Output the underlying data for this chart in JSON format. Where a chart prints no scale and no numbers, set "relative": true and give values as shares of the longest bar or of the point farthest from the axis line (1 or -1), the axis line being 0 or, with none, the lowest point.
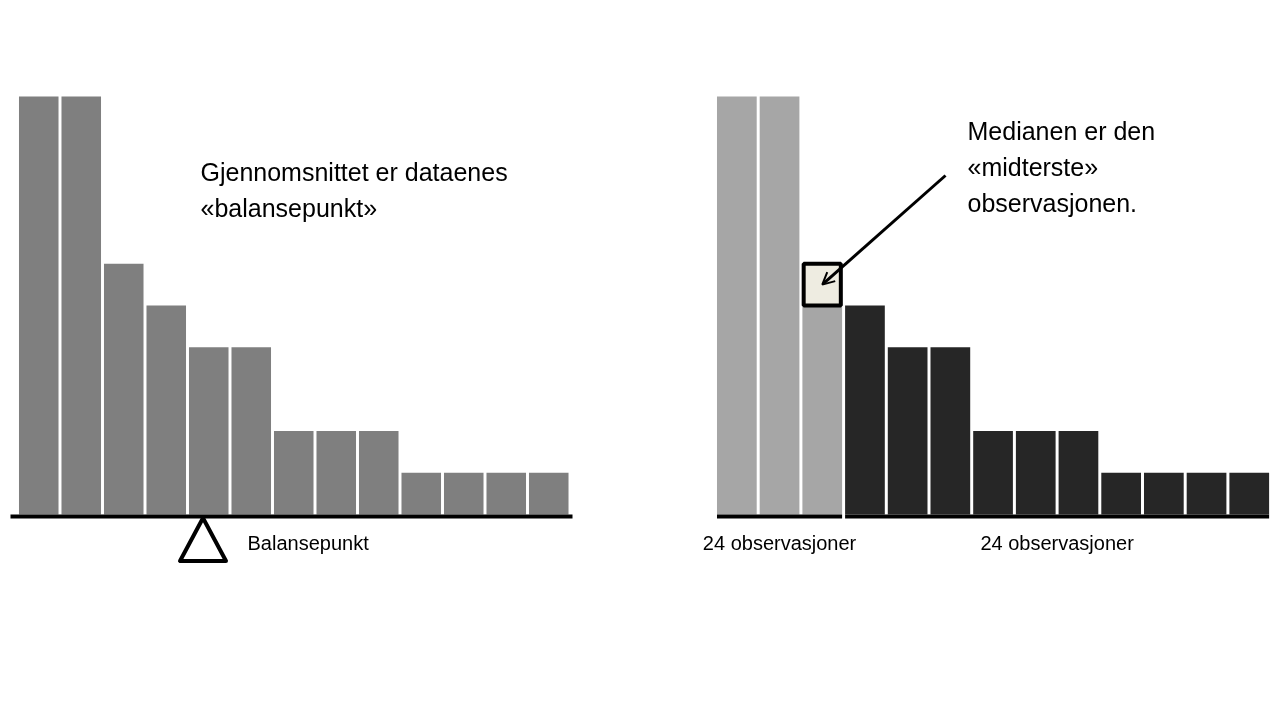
{
  "chart_data": [
    {
      "type": "bar",
      "relative": true,
      "categories": [
        null,
        null,
        null,
        null,
        null,
        null,
        null,
        null,
        null,
        null,
        null,
        null,
        null
      ],
      "values": [
        1,
        1,
        0.6,
        0.5,
        0.4,
        0.4,
        0.2,
        0.2,
        0.2,
        0.1,
        0.1,
        0.1,
        0.1
      ],
      "color": "#7f7f7f",
      "annotations": [
        "Gjennomsnittet er dataenes «balansepunkt»",
        "Balansepunkt"
      ]
    },
    {
      "type": "bar",
      "relative": true,
      "stacked": true,
      "categories": [
        null,
        null,
        null,
        null,
        null,
        null,
        null,
        null,
        null,
        null,
        null,
        null,
        null
      ],
      "series": [
        {
          "color": "#a6a6a6",
          "values": [
            1,
            1,
            0.5,
            null,
            null,
            null,
            null,
            null,
            null,
            null,
            null,
            null,
            null
          ]
        },
        {
          "color": "#eeece1",
          "values": [
            null,
            null,
            0.1,
            null,
            null,
            null,
            null,
            null,
            null,
            null,
            null,
            null,
            null
          ]
        },
        {
          "color": "#262626",
          "values": [
            null,
            null,
            null,
            0.5,
            0.4,
            0.4,
            0.2,
            0.2,
            0.2,
            0.1,
            0.1,
            0.1,
            0.1
          ]
        }
      ],
      "annotations": [
        "Medianen er den «midterste» observasjonen.",
        "24 observasjoner",
        "24 observasjoner"
      ]
    }
  ]
}
